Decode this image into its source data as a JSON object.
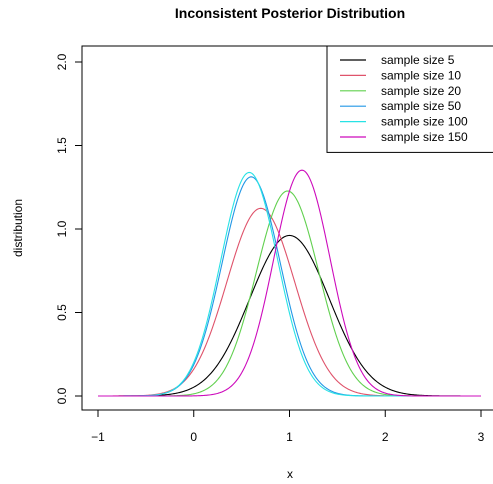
{
  "chart_data": {
    "type": "line",
    "title": "Inconsistent Posterior Distribution",
    "xlabel": "x",
    "ylabel": "distribution",
    "xlim": [
      -1,
      3
    ],
    "ylim": [
      0,
      2
    ],
    "x_ticks": [
      "−1",
      "0",
      "1",
      "2",
      "3"
    ],
    "y_ticks": [
      "0.0",
      "0.5",
      "1.0",
      "1.5",
      "2.0"
    ],
    "legend_position": "top-right",
    "series": [
      {
        "name": "sample size 5",
        "color": "#000000",
        "mean": 1.0,
        "sd": 0.415,
        "x_range": [
          -1,
          3
        ]
      },
      {
        "name": "sample size 10",
        "color": "#df536b",
        "mean": 0.7,
        "sd": 0.355,
        "x_range": [
          -1,
          3
        ]
      },
      {
        "name": "sample size 20",
        "color": "#61d04f",
        "mean": 0.98,
        "sd": 0.325,
        "x_range": [
          -1,
          3
        ]
      },
      {
        "name": "sample size 50",
        "color": "#2297e6",
        "mean": 0.6,
        "sd": 0.304,
        "x_range": [
          -1,
          3
        ]
      },
      {
        "name": "sample size 100",
        "color": "#28e2e5",
        "mean": 0.58,
        "sd": 0.298,
        "x_range": [
          -1,
          3
        ]
      },
      {
        "name": "sample size 150",
        "color": "#cd0bbc",
        "mean": 1.13,
        "sd": 0.295,
        "x_range": [
          -1,
          3
        ]
      }
    ]
  }
}
